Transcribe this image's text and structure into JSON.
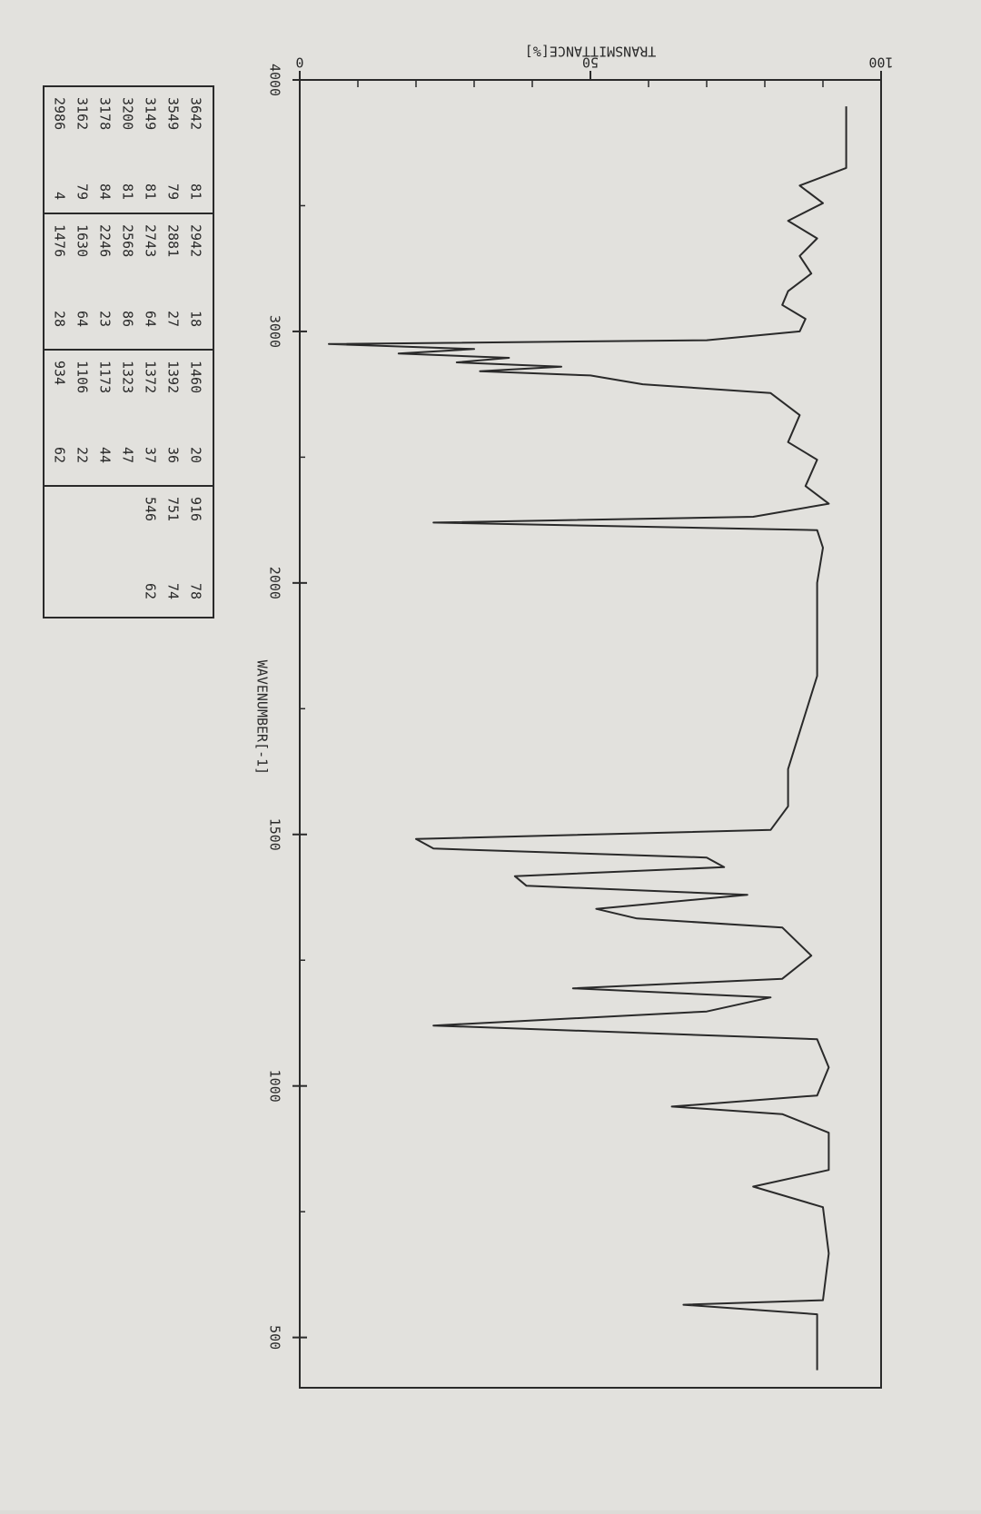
{
  "chart_data": {
    "type": "line",
    "title": "TRANSMITTANCE[%]",
    "x_label": "WAVENUMBER[-1]",
    "xlim": [
      4000,
      400
    ],
    "xticks": [
      4000,
      3000,
      2000,
      1500,
      1000,
      500
    ],
    "xminor": [
      3500,
      2500,
      1750,
      1250,
      750
    ],
    "x_scale_break": 2000,
    "ylim": [
      0,
      100
    ],
    "yticks": [
      0,
      50,
      100
    ],
    "yminor": [
      10,
      20,
      30,
      40,
      60,
      70,
      80,
      90
    ],
    "series": [
      {
        "color": "#2a2a2a",
        "x": [
          3895,
          3790,
          3650,
          3580,
          3510,
          3440,
          3370,
          3300,
          3230,
          3160,
          3105,
          3050,
          3000,
          2965,
          2950,
          2930,
          2912,
          2895,
          2877,
          2860,
          2842,
          2825,
          2790,
          2755,
          2667,
          2560,
          2490,
          2385,
          2315,
          2263,
          2240,
          2210,
          2140,
          2000,
          1815,
          1704,
          1630,
          1556,
          1509,
          1491,
          1472,
          1454,
          1435,
          1417,
          1398,
          1380,
          1352,
          1333,
          1315,
          1259,
          1213,
          1194,
          1176,
          1148,
          1120,
          1093,
          1037,
          981,
          959,
          944,
          907,
          833,
          800,
          759,
          667,
          574,
          565,
          546,
          481,
          435
        ],
        "values": [
          94,
          94,
          94,
          86,
          90,
          84,
          89,
          86,
          88,
          84,
          83,
          87,
          86,
          70,
          5,
          30,
          17,
          36,
          27,
          45,
          31,
          50,
          59,
          81,
          86,
          84,
          89,
          87,
          91,
          78,
          23,
          89,
          90,
          89,
          89,
          86,
          84,
          84,
          81,
          20,
          23,
          70,
          73,
          37,
          39,
          77,
          51,
          58,
          83,
          88,
          83,
          47,
          81,
          70,
          23,
          89,
          91,
          89,
          64,
          83,
          91,
          91,
          78,
          90,
          91,
          90,
          66,
          89,
          89,
          89
        ]
      }
    ]
  },
  "peak_table": {
    "columns": [
      [
        [
          3642,
          81
        ],
        [
          3549,
          79
        ],
        [
          3149,
          81
        ],
        [
          3200,
          81
        ],
        [
          3178,
          84
        ],
        [
          3162,
          79
        ],
        [
          2986,
          4
        ]
      ],
      [
        [
          2942,
          18
        ],
        [
          2881,
          27
        ],
        [
          2743,
          64
        ],
        [
          2568,
          86
        ],
        [
          2246,
          23
        ],
        [
          1630,
          64
        ],
        [
          1476,
          28
        ]
      ],
      [
        [
          1460,
          20
        ],
        [
          1392,
          36
        ],
        [
          1372,
          37
        ],
        [
          1323,
          47
        ],
        [
          1173,
          44
        ],
        [
          1106,
          22
        ],
        [
          934,
          62
        ]
      ],
      [
        [
          916,
          78
        ],
        [
          751,
          74
        ],
        [
          546,
          62
        ]
      ]
    ]
  }
}
